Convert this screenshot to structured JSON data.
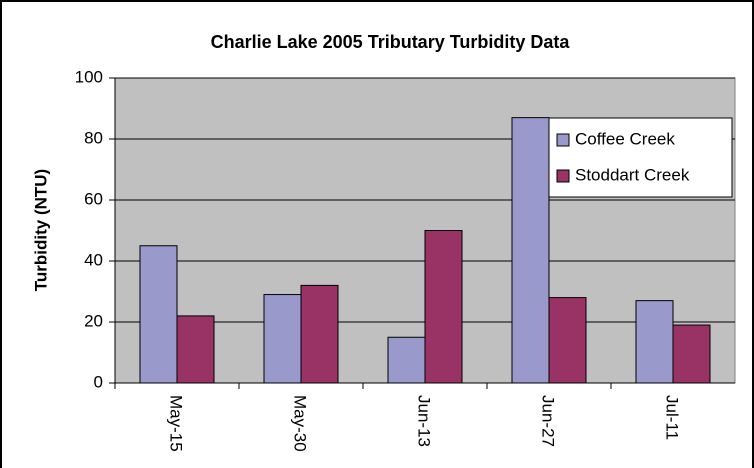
{
  "chart_data": {
    "type": "bar",
    "title": "Charlie Lake 2005 Tributary Turbidity Data",
    "y_label": "Turbidity (NTU)",
    "categories": [
      "May-15",
      "May-30",
      "Jun-13",
      "Jun-27",
      "Jul-11"
    ],
    "series": [
      {
        "name": "Coffee Creek",
        "color": "#9999cc",
        "values": [
          45,
          29,
          15,
          87,
          27
        ]
      },
      {
        "name": "Stoddart Creek",
        "color": "#993366",
        "values": [
          22,
          32,
          50,
          28,
          19
        ]
      }
    ],
    "ylim": [
      0,
      100
    ],
    "yticks": [
      0,
      20,
      40,
      60,
      80,
      100
    ],
    "grid": true,
    "legend": "upper right"
  }
}
